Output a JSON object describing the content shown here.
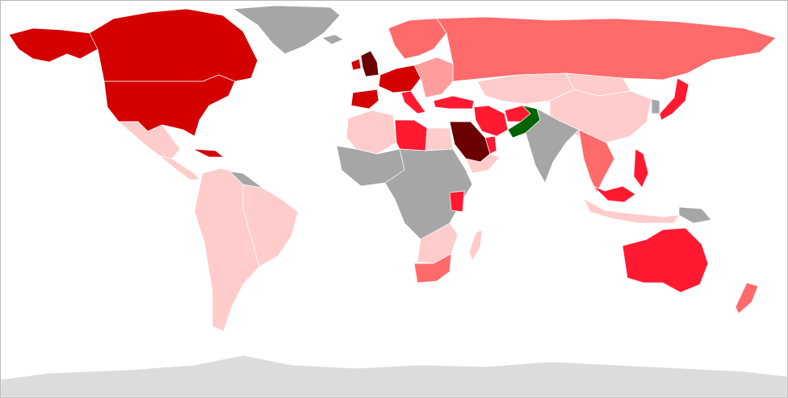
{
  "map": {
    "projection": "equirectangular",
    "legend": "none",
    "palette": {
      "no_data": "#a6a6a6",
      "antarctica": "#dcdcdc",
      "level_1_lightest": "#ffcccc",
      "level_2": "#ff9d9d",
      "level_3": "#ff6b6b",
      "level_4": "#ff1a32",
      "level_5": "#d40000",
      "level_6_darkest": "#6b0000",
      "highlight": "#006400"
    },
    "regions": [
      {
        "id": "canada",
        "level": "level_5"
      },
      {
        "id": "united-states",
        "level": "level_5"
      },
      {
        "id": "alaska",
        "level": "level_5"
      },
      {
        "id": "greenland",
        "level": "no_data"
      },
      {
        "id": "mexico",
        "level": "level_1_lightest"
      },
      {
        "id": "central-america",
        "level": "level_1_lightest"
      },
      {
        "id": "cuba",
        "level": "level_5"
      },
      {
        "id": "south-america",
        "level": "level_1_lightest"
      },
      {
        "id": "brazil",
        "level": "level_1_lightest"
      },
      {
        "id": "guianas",
        "level": "no_data"
      },
      {
        "id": "iceland",
        "level": "no_data"
      },
      {
        "id": "united-kingdom",
        "level": "level_6_darkest"
      },
      {
        "id": "ireland",
        "level": "level_5"
      },
      {
        "id": "western-europe",
        "level": "level_5"
      },
      {
        "id": "iberia",
        "level": "level_5"
      },
      {
        "id": "italy",
        "level": "level_4"
      },
      {
        "id": "scandinavia",
        "level": "level_3"
      },
      {
        "id": "eastern-europe",
        "level": "level_2"
      },
      {
        "id": "russia",
        "level": "level_3"
      },
      {
        "id": "turkey",
        "level": "level_4"
      },
      {
        "id": "iran",
        "level": "level_4"
      },
      {
        "id": "afghanistan",
        "level": "level_4"
      },
      {
        "id": "pakistan",
        "level": "highlight"
      },
      {
        "id": "india",
        "level": "no_data"
      },
      {
        "id": "saudi-arabia",
        "level": "level_6_darkest"
      },
      {
        "id": "yemen-oman",
        "level": "level_1_lightest"
      },
      {
        "id": "uae",
        "level": "level_4"
      },
      {
        "id": "central-asia",
        "level": "level_1_lightest"
      },
      {
        "id": "china",
        "level": "level_1_lightest"
      },
      {
        "id": "mongolia",
        "level": "level_1_lightest"
      },
      {
        "id": "japan",
        "level": "level_4"
      },
      {
        "id": "korea",
        "level": "no_data"
      },
      {
        "id": "southeast-asia",
        "level": "level_3"
      },
      {
        "id": "philippines",
        "level": "level_4"
      },
      {
        "id": "malaysia",
        "level": "level_4"
      },
      {
        "id": "indonesia",
        "level": "level_1_lightest"
      },
      {
        "id": "papua",
        "level": "no_data"
      },
      {
        "id": "north-africa-west",
        "level": "level_1_lightest"
      },
      {
        "id": "libya",
        "level": "level_4"
      },
      {
        "id": "egypt",
        "level": "level_1_lightest"
      },
      {
        "id": "west-africa",
        "level": "no_data"
      },
      {
        "id": "central-africa",
        "level": "no_data"
      },
      {
        "id": "kenya",
        "level": "level_4"
      },
      {
        "id": "southern-africa",
        "level": "level_1_lightest"
      },
      {
        "id": "south-africa",
        "level": "level_3"
      },
      {
        "id": "madagascar",
        "level": "level_1_lightest"
      },
      {
        "id": "australia",
        "level": "level_4"
      },
      {
        "id": "new-zealand",
        "level": "level_3"
      },
      {
        "id": "antarctica",
        "level": "antarctica"
      }
    ]
  }
}
